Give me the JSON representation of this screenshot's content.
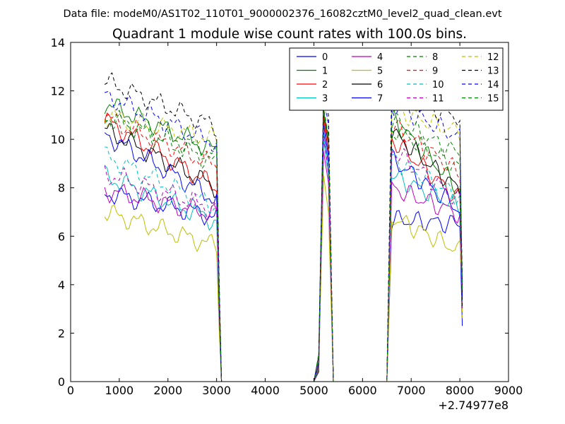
{
  "header": {
    "data_file": "Data file: modeM0/AS1T02_110T01_9000002376_16082cztM0_level2_quad_clean.evt"
  },
  "chart_data": {
    "type": "line",
    "title": "Quadrant 1 module wise count rates with 100.0s bins.",
    "xlabel": "",
    "ylabel": "",
    "x_offset_label": "+2.74977e8",
    "xlim": [
      0,
      9000
    ],
    "ylim": [
      0,
      14
    ],
    "xticks": [
      0,
      1000,
      2000,
      3000,
      4000,
      5000,
      6000,
      7000,
      8000,
      9000
    ],
    "yticks": [
      0,
      2,
      4,
      6,
      8,
      10,
      12,
      14
    ],
    "grid": false,
    "legend": {
      "placement": "top-right",
      "columns": 4
    },
    "segments": [
      {
        "x_start": 700,
        "x_end": 3000
      },
      {
        "x_start": 5200,
        "x_end": 5300
      },
      {
        "x_start": 6600,
        "x_end": 8000
      }
    ],
    "zero_x": [
      3100,
      3200,
      3400,
      3600,
      3800,
      4000,
      4200,
      4400,
      4600,
      4800,
      5000,
      5400,
      5500,
      5700,
      5900,
      6100,
      6300,
      6500
    ],
    "end_values": [
      3.0,
      2.6,
      3.1,
      3.4,
      3.8,
      2.3,
      3.5,
      3.3,
      3.2,
      3.6,
      3.9,
      3.7,
      4.2,
      4.5,
      4.0,
      4.1
    ],
    "series": [
      {
        "name": "0",
        "color": "#0000ff",
        "style": "solid",
        "seg1": [
          7.8,
          6.8
        ],
        "seg2": [
          10.3,
          9.0
        ],
        "seg3": [
          6.7,
          6.5
        ]
      },
      {
        "name": "1",
        "color": "#008000",
        "style": "solid",
        "seg1": [
          11.5,
          9.5
        ],
        "seg2": [
          11.2,
          10.0
        ],
        "seg3": [
          10.9,
          7.9
        ]
      },
      {
        "name": "2",
        "color": "#ff0000",
        "style": "solid",
        "seg1": [
          10.8,
          8.0
        ],
        "seg2": [
          10.8,
          9.5
        ],
        "seg3": [
          10.0,
          7.5
        ]
      },
      {
        "name": "3",
        "color": "#00bfbf",
        "style": "solid",
        "seg1": [
          8.5,
          6.6
        ],
        "seg2": [
          10.0,
          8.5
        ],
        "seg3": [
          8.5,
          7.2
        ]
      },
      {
        "name": "4",
        "color": "#bf00bf",
        "style": "solid",
        "seg1": [
          7.9,
          6.9
        ],
        "seg2": [
          9.5,
          8.2
        ],
        "seg3": [
          8.0,
          6.9
        ]
      },
      {
        "name": "5",
        "color": "#bfbf00",
        "style": "solid",
        "seg1": [
          7.0,
          5.6
        ],
        "seg2": [
          8.5,
          7.0
        ],
        "seg3": [
          6.8,
          5.4
        ]
      },
      {
        "name": "6",
        "color": "#000000",
        "style": "solid",
        "seg1": [
          10.4,
          8.0
        ],
        "seg2": [
          11.0,
          9.8
        ],
        "seg3": [
          10.3,
          7.9
        ]
      },
      {
        "name": "7",
        "color": "#0000ff",
        "style": "solid",
        "seg1": [
          10.2,
          7.5
        ],
        "seg2": [
          10.6,
          9.3
        ],
        "seg3": [
          9.2,
          7.1
        ]
      },
      {
        "name": "8",
        "color": "#008000",
        "style": "dashed",
        "seg1": [
          11.0,
          9.0
        ],
        "seg2": [
          11.3,
          10.1
        ],
        "seg3": [
          10.5,
          8.8
        ]
      },
      {
        "name": "9",
        "color": "#ff0000",
        "style": "dashed",
        "seg1": [
          10.9,
          8.9
        ],
        "seg2": [
          11.0,
          9.9
        ],
        "seg3": [
          10.6,
          8.6
        ]
      },
      {
        "name": "10",
        "color": "#00bfbf",
        "style": "dashed",
        "seg1": [
          9.3,
          7.2
        ],
        "seg2": [
          10.2,
          8.9
        ],
        "seg3": [
          9.2,
          7.6
        ]
      },
      {
        "name": "11",
        "color": "#bf00bf",
        "style": "dashed",
        "seg1": [
          8.6,
          7.1
        ],
        "seg2": [
          10.0,
          8.7
        ],
        "seg3": [
          9.6,
          7.4
        ]
      },
      {
        "name": "12",
        "color": "#bfbf00",
        "style": "dashed",
        "seg1": [
          11.0,
          10.0
        ],
        "seg2": [
          11.6,
          10.6
        ],
        "seg3": [
          11.2,
          10.3
        ]
      },
      {
        "name": "13",
        "color": "#000000",
        "style": "dashed",
        "seg1": [
          12.4,
          10.5
        ],
        "seg2": [
          12.0,
          11.0
        ],
        "seg3": [
          11.8,
          10.9
        ]
      },
      {
        "name": "14",
        "color": "#0000ff",
        "style": "dashed",
        "seg1": [
          11.8,
          9.8
        ],
        "seg2": [
          11.8,
          10.6
        ],
        "seg3": [
          11.4,
          10.1
        ]
      },
      {
        "name": "15",
        "color": "#008000",
        "style": "dashed",
        "seg1": [
          10.9,
          9.4
        ],
        "seg2": [
          11.0,
          10.2
        ],
        "seg3": [
          10.8,
          9.4
        ]
      }
    ]
  }
}
